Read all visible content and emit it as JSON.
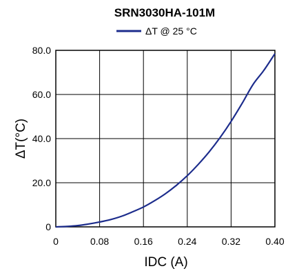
{
  "chart_data": {
    "type": "line",
    "title": "SRN3030HA-101M",
    "xlabel": "IDC (A)",
    "ylabel": "ΔT(°C)",
    "xlim": [
      0,
      0.4
    ],
    "ylim": [
      0,
      80.0
    ],
    "x_ticks": [
      "0",
      "0.08",
      "0.16",
      "0.24",
      "0.32",
      "0.40"
    ],
    "y_ticks": [
      "0",
      "20.0",
      "40.0",
      "60.0",
      "80.0"
    ],
    "grid": true,
    "legend_position": "top-center",
    "series": [
      {
        "name": "ΔT @ 25 °C",
        "color": "#1c2c8c",
        "x": [
          0,
          0.02,
          0.04,
          0.06,
          0.08,
          0.1,
          0.12,
          0.14,
          0.16,
          0.18,
          0.2,
          0.22,
          0.24,
          0.26,
          0.28,
          0.3,
          0.32,
          0.34,
          0.36,
          0.38,
          0.4
        ],
        "y": [
          0,
          0.2,
          0.6,
          1.3,
          2.2,
          3.3,
          4.8,
          6.8,
          9.0,
          11.8,
          15.0,
          18.8,
          23.2,
          28.3,
          34.0,
          40.5,
          47.8,
          55.9,
          64.5,
          71.0,
          78.5
        ]
      }
    ]
  }
}
